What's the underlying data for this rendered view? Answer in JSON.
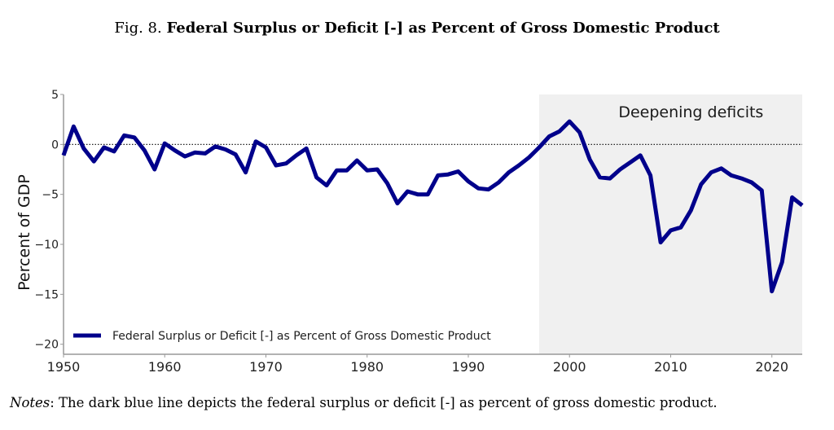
{
  "figure": {
    "prefix": "Fig. 8.",
    "title": "Federal Surplus or Deficit [-] as Percent of Gross Domestic Product"
  },
  "notes": {
    "label": "Notes",
    "text": ": The dark blue line depicts the federal surplus or deficit [-] as percent of gross domestic product."
  },
  "colors": {
    "line": "#00008b",
    "shade": "#f0f0f0",
    "axis": "#999999"
  },
  "chart_data": {
    "type": "line",
    "title": "Federal Surplus or Deficit [-] as Percent of Gross Domestic Product",
    "xlabel": "",
    "ylabel": "Percent of GDP",
    "xlim": [
      1950,
      2023
    ],
    "ylim": [
      -21,
      5
    ],
    "xticks": [
      1950,
      1960,
      1970,
      1980,
      1990,
      2000,
      2010,
      2020
    ],
    "yticks": [
      5,
      0,
      -5,
      -10,
      -15,
      -20
    ],
    "ytick_labels": [
      "5",
      "0",
      "−5",
      "−10",
      "−15",
      "−20"
    ],
    "grid": false,
    "reference_line": {
      "y": 0,
      "style": "dotted"
    },
    "shaded_region": {
      "x_start": 1997,
      "x_end": 2023,
      "label": "Deepening deficits"
    },
    "legend": {
      "position": "bottom-left",
      "entries": [
        "Federal Surplus or Deficit [-] as Percent of Gross Domestic Product"
      ]
    },
    "series": [
      {
        "name": "Federal Surplus or Deficit [-] as Percent of Gross Domestic Product",
        "x": [
          1950,
          1951,
          1952,
          1953,
          1954,
          1955,
          1956,
          1957,
          1958,
          1959,
          1960,
          1961,
          1962,
          1963,
          1964,
          1965,
          1966,
          1967,
          1968,
          1969,
          1970,
          1971,
          1972,
          1973,
          1974,
          1975,
          1976,
          1977,
          1978,
          1979,
          1980,
          1981,
          1982,
          1983,
          1984,
          1985,
          1986,
          1987,
          1988,
          1989,
          1990,
          1991,
          1992,
          1993,
          1994,
          1995,
          1996,
          1997,
          1998,
          1999,
          2000,
          2001,
          2002,
          2003,
          2004,
          2005,
          2006,
          2007,
          2008,
          2009,
          2010,
          2011,
          2012,
          2013,
          2014,
          2015,
          2016,
          2017,
          2018,
          2019,
          2020,
          2021,
          2022,
          2023
        ],
        "values": [
          -1.1,
          1.8,
          -0.4,
          -1.7,
          -0.3,
          -0.7,
          0.9,
          0.7,
          -0.6,
          -2.5,
          0.1,
          -0.6,
          -1.2,
          -0.8,
          -0.9,
          -0.2,
          -0.5,
          -1.0,
          -2.8,
          0.3,
          -0.3,
          -2.1,
          -1.9,
          -1.1,
          -0.4,
          -3.3,
          -4.1,
          -2.6,
          -2.6,
          -1.6,
          -2.6,
          -2.5,
          -3.9,
          -5.9,
          -4.7,
          -5.0,
          -5.0,
          -3.1,
          -3.0,
          -2.7,
          -3.7,
          -4.4,
          -4.5,
          -3.8,
          -2.8,
          -2.1,
          -1.3,
          -0.3,
          0.8,
          1.3,
          2.3,
          1.2,
          -1.5,
          -3.3,
          -3.4,
          -2.5,
          -1.8,
          -1.1,
          -3.1,
          -9.8,
          -8.6,
          -8.3,
          -6.6,
          -4.0,
          -2.8,
          -2.4,
          -3.1,
          -3.4,
          -3.8,
          -4.6,
          -14.7,
          -11.8,
          -5.3,
          -6.1
        ]
      }
    ]
  }
}
